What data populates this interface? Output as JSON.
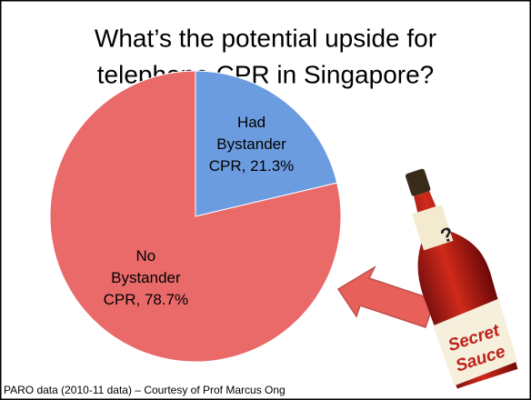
{
  "chart_data": {
    "type": "pie",
    "title": [
      "What’s the potential upside for",
      "telephone CPR in Singapore?"
    ],
    "categories": [
      null,
      null
    ],
    "values": [
      21.3,
      78.7
    ],
    "value_labels": [
      "Had Bystander CPR, 21.3%",
      "No Bystander CPR, 78.7%"
    ],
    "colors": [
      "#6c9ce0",
      "#ea6a6a"
    ],
    "start_angle": 0,
    "direction": "clockwise",
    "footnote": "PARO data (2010-11 data) – Courtesy of Prof Marcus Ong",
    "bottle_mark": "?",
    "bottle_label": [
      "Secret",
      "Sauce"
    ]
  }
}
